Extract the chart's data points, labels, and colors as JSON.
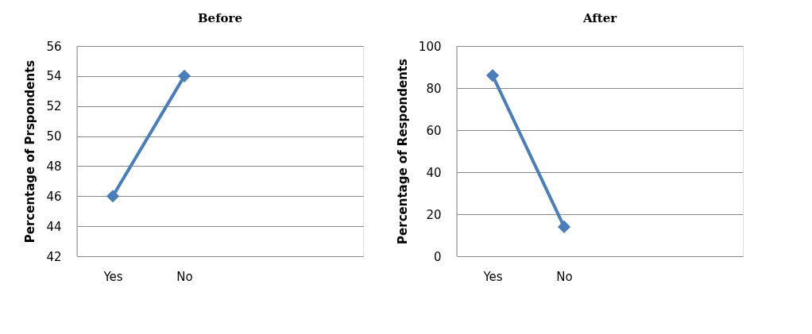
{
  "chart_data": [
    {
      "type": "line",
      "title": "Before",
      "ylabel": "Percentage of Prspondents",
      "categories": [
        "Yes",
        "No",
        null,
        null
      ],
      "series": [
        {
          "color": "#4a7ebb",
          "values": [
            46,
            54,
            null,
            null
          ]
        }
      ],
      "ylim": [
        42,
        56
      ],
      "yticks": [
        42,
        44,
        46,
        48,
        50,
        52,
        54,
        56
      ],
      "grid": "y",
      "marker": "diamond",
      "line_style": "solid"
    },
    {
      "type": "line",
      "title": "After",
      "ylabel": "Percentage of Respondents",
      "categories": [
        "Yes",
        "No",
        null,
        null
      ],
      "series": [
        {
          "color": "#4a7ebb",
          "values": [
            86,
            14,
            null,
            null
          ]
        }
      ],
      "ylim": [
        0,
        100
      ],
      "yticks": [
        0,
        20,
        40,
        60,
        80,
        100
      ],
      "grid": "y",
      "marker": "diamond",
      "line_style": "solid"
    }
  ]
}
